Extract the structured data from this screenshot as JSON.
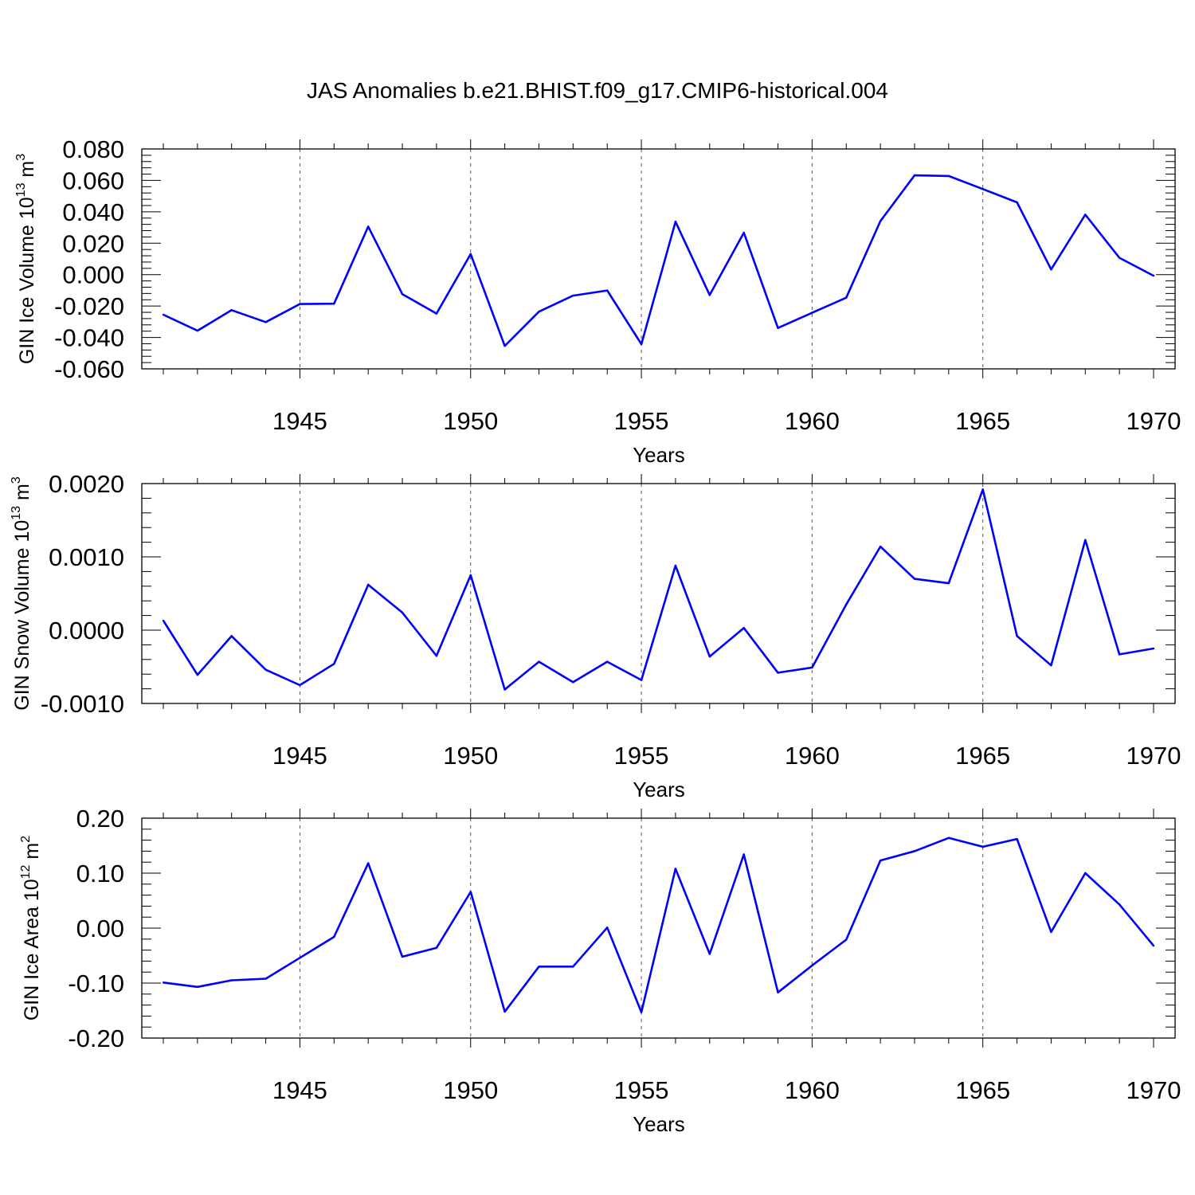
{
  "figure": {
    "title": "JAS Anomalies b.e21.BHIST.f09_g17.CMIP6-historical.004",
    "line_color": "#0000ff",
    "grid_color": "#555555"
  },
  "chart_data": [
    {
      "type": "line",
      "title": "JAS Anomalies b.e21.BHIST.f09_g17.CMIP6-historical.004",
      "xlabel": "Years",
      "ylabel": "GIN Ice Volume 10^13 m^3",
      "ylabel_parts": {
        "text": "GIN Ice Volume 10",
        "exp1": "13",
        "unit": " m",
        "exp2": "3"
      },
      "xlim": [
        1941,
        1970
      ],
      "ylim": [
        -0.06,
        0.08
      ],
      "xticks": [
        1945,
        1950,
        1955,
        1960,
        1965,
        1970
      ],
      "xtick_labels": [
        "1945",
        "1950",
        "1955",
        "1960",
        "1965",
        "1970"
      ],
      "yticks": [
        -0.06,
        -0.04,
        -0.02,
        0.0,
        0.02,
        0.04,
        0.06,
        0.08
      ],
      "ytick_labels": [
        "-0.060",
        "-0.040",
        "-0.020",
        "0.000",
        "0.020",
        "0.040",
        "0.060",
        "0.080"
      ],
      "x": [
        1941,
        1942,
        1943,
        1944,
        1945,
        1946,
        1947,
        1948,
        1949,
        1950,
        1951,
        1952,
        1953,
        1954,
        1955,
        1956,
        1957,
        1958,
        1959,
        1960,
        1961,
        1962,
        1963,
        1964,
        1965,
        1966,
        1967,
        1968,
        1969,
        1970
      ],
      "series": [
        {
          "name": "GIN Ice Volume",
          "values": [
            -0.0255,
            -0.0357,
            -0.0226,
            -0.0302,
            -0.0187,
            -0.0185,
            0.0306,
            -0.0124,
            -0.0248,
            0.0131,
            -0.0454,
            -0.0236,
            -0.0134,
            -0.0101,
            -0.0443,
            0.0337,
            -0.013,
            0.0267,
            -0.034,
            -0.0243,
            -0.0147,
            0.0341,
            0.0632,
            0.0628,
            0.0545,
            0.046,
            0.0033,
            0.0382,
            0.0107,
            -0.0007
          ]
        }
      ]
    },
    {
      "type": "line",
      "xlabel": "Years",
      "ylabel": "GIN Snow Volume 10^13 m^3",
      "ylabel_parts": {
        "text": "GIN Snow Volume 10",
        "exp1": "13",
        "unit": " m",
        "exp2": "3"
      },
      "xlim": [
        1941,
        1970
      ],
      "ylim": [
        -0.001,
        0.002
      ],
      "xticks": [
        1945,
        1950,
        1955,
        1960,
        1965,
        1970
      ],
      "xtick_labels": [
        "1945",
        "1950",
        "1955",
        "1960",
        "1965",
        "1970"
      ],
      "yticks": [
        -0.001,
        0.0,
        0.001,
        0.002
      ],
      "ytick_labels": [
        "-0.0010",
        "0.0000",
        "0.0010",
        "0.0020"
      ],
      "x": [
        1941,
        1942,
        1943,
        1944,
        1945,
        1946,
        1947,
        1948,
        1949,
        1950,
        1951,
        1952,
        1953,
        1954,
        1955,
        1956,
        1957,
        1958,
        1959,
        1960,
        1961,
        1962,
        1963,
        1964,
        1965,
        1966,
        1967,
        1968,
        1969,
        1970
      ],
      "series": [
        {
          "name": "GIN Snow Volume",
          "values": [
            0.00013,
            -0.00061,
            -8e-05,
            -0.00054,
            -0.00075,
            -0.00046,
            0.00062,
            0.00024,
            -0.00035,
            0.00075,
            -0.00081,
            -0.00043,
            -0.00071,
            -0.00043,
            -0.00068,
            0.00088,
            -0.00036,
            3e-05,
            -0.00058,
            -0.00051,
            0.00035,
            0.00114,
            0.0007,
            0.00064,
            0.00192,
            -8e-05,
            -0.00048,
            0.00123,
            -0.00033,
            -0.00025
          ]
        }
      ]
    },
    {
      "type": "line",
      "xlabel": "Years",
      "ylabel": "GIN Ice Area 10^12 m^2",
      "ylabel_parts": {
        "text": "GIN Ice Area 10",
        "exp1": "12",
        "unit": " m",
        "exp2": "2"
      },
      "xlim": [
        1941,
        1970
      ],
      "ylim": [
        -0.2,
        0.2
      ],
      "xticks": [
        1945,
        1950,
        1955,
        1960,
        1965,
        1970
      ],
      "xtick_labels": [
        "1945",
        "1950",
        "1955",
        "1960",
        "1965",
        "1970"
      ],
      "yticks": [
        -0.2,
        -0.1,
        0.0,
        0.1,
        0.2
      ],
      "ytick_labels": [
        "-0.20",
        "-0.10",
        "0.00",
        "0.10",
        "0.20"
      ],
      "x": [
        1941,
        1942,
        1943,
        1944,
        1945,
        1946,
        1947,
        1948,
        1949,
        1950,
        1951,
        1952,
        1953,
        1954,
        1955,
        1956,
        1957,
        1958,
        1959,
        1960,
        1961,
        1962,
        1963,
        1964,
        1965,
        1966,
        1967,
        1968,
        1969,
        1970
      ],
      "series": [
        {
          "name": "GIN Ice Area",
          "values": [
            -0.099,
            -0.107,
            -0.095,
            -0.092,
            -0.054,
            -0.016,
            0.118,
            -0.052,
            -0.036,
            0.066,
            -0.152,
            -0.07,
            -0.07,
            0.001,
            -0.153,
            0.108,
            -0.047,
            0.134,
            -0.117,
            -0.068,
            -0.021,
            0.123,
            0.14,
            0.164,
            0.148,
            0.162,
            -0.007,
            0.1,
            0.043,
            -0.032
          ]
        }
      ]
    }
  ]
}
